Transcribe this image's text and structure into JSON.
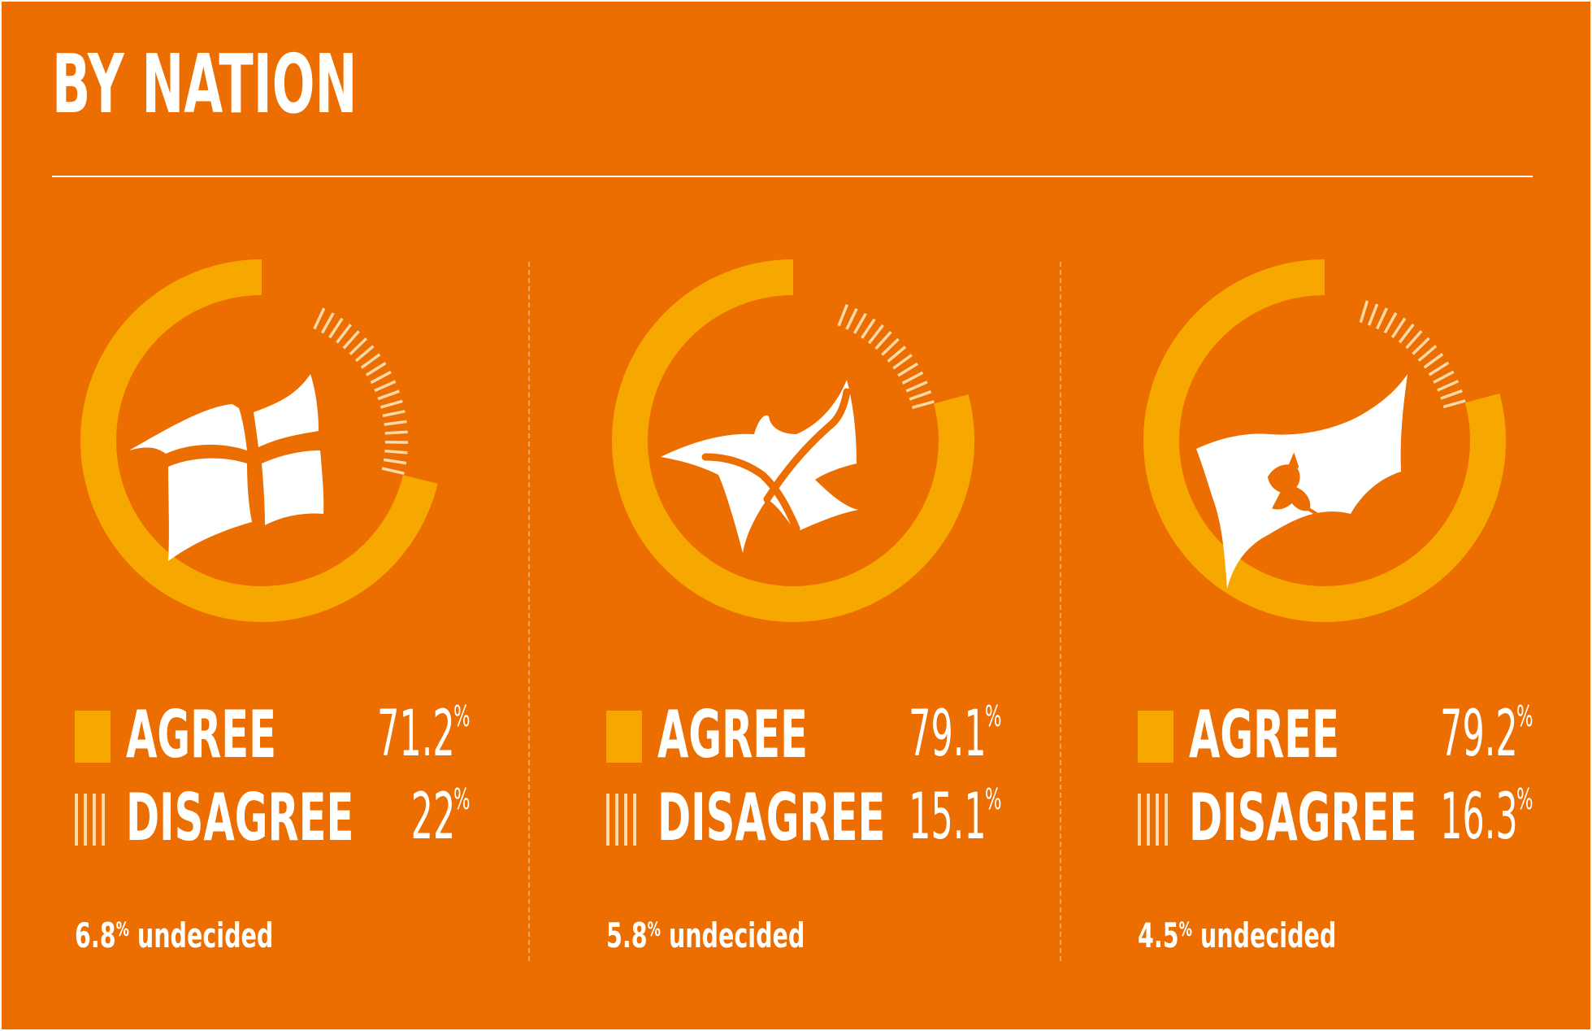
{
  "title": "BY NATION",
  "colors": {
    "background": "#ED6E00",
    "agree": "#F7A800",
    "disagree": "#FCD9A8",
    "text": "#FFFFFF"
  },
  "legend": {
    "agree_label": "AGREE",
    "disagree_label": "DISAGREE"
  },
  "percent_sign": "%",
  "undecided_word": "undecided",
  "nations": [
    {
      "icon": "england-flag-icon",
      "agree_value": "71.2",
      "disagree_value": "22",
      "undecided_value": "6.8"
    },
    {
      "icon": "scotland-flag-icon",
      "agree_value": "79.1",
      "disagree_value": "15.1",
      "undecided_value": "5.8"
    },
    {
      "icon": "wales-flag-icon",
      "agree_value": "79.2",
      "disagree_value": "16.3",
      "undecided_value": "4.5"
    }
  ],
  "chart_data": [
    {
      "type": "pie",
      "style": "donut",
      "categories": [
        "AGREE",
        "DISAGREE",
        "undecided"
      ],
      "values": [
        71.2,
        22,
        6.8
      ]
    },
    {
      "type": "pie",
      "style": "donut",
      "categories": [
        "AGREE",
        "DISAGREE",
        "undecided"
      ],
      "values": [
        79.1,
        15.1,
        5.8
      ]
    },
    {
      "type": "pie",
      "style": "donut",
      "categories": [
        "AGREE",
        "DISAGREE",
        "undecided"
      ],
      "values": [
        79.2,
        16.3,
        4.5
      ]
    }
  ]
}
